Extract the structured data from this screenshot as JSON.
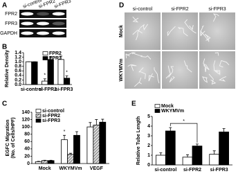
{
  "gel": {
    "panel": "A",
    "columns": [
      "si-control",
      "si-FPR2",
      "si-FPR3"
    ],
    "rows": [
      "FPR2",
      "FPR3",
      "GAPDH"
    ]
  },
  "micrographs": {
    "panel": "D",
    "columns": [
      "si-control",
      "si-FPR2",
      "si-FPR3"
    ],
    "rows": [
      "Mock",
      "WKYMVm"
    ]
  },
  "chart_data": [
    {
      "type": "bar",
      "panel": "B",
      "ylabel": "Relative Density",
      "categories": [
        "si-control",
        "si-FPR2",
        "si-FPR3"
      ],
      "series": [
        {
          "name": "FPR2",
          "color": "#ffffff",
          "values": [
            1.0,
            0.15,
            1.1
          ],
          "errors": [
            0,
            0.1,
            0.15
          ]
        },
        {
          "name": "FPR3",
          "color": "#000000",
          "values": [
            1.0,
            1.1,
            0.28
          ],
          "errors": [
            0,
            0.12,
            0.1
          ]
        }
      ],
      "ylim": [
        0,
        1.4
      ],
      "yticks": [
        {
          "value": 0,
          "label": "0.0"
        },
        {
          "value": 0.2,
          "label": "0.2"
        },
        {
          "value": 0.4,
          "label": "0.4"
        },
        {
          "value": 0.6,
          "label": "0.6"
        },
        {
          "value": 0.8,
          "label": "0.8"
        },
        {
          "value": 1.0,
          "label": "1.0"
        },
        {
          "value": 1.2,
          "label": "1.2"
        },
        {
          "value": 1.4,
          "label": "1.4"
        }
      ],
      "annotations": [
        "*",
        "*"
      ]
    },
    {
      "type": "bar",
      "panel": "C",
      "ylabel": [
        "EGFC Migration",
        "(No. of Cells/HPF)"
      ],
      "categories": [
        "Mock",
        "WKYMVm",
        "VEGF"
      ],
      "series": [
        {
          "name": "si-control",
          "color": "#ffffff",
          "values": [
            5,
            65,
            100
          ],
          "errors": [
            1,
            12,
            12
          ]
        },
        {
          "name": "si-FPR2",
          "color": "#888888",
          "pattern": "hatch",
          "values": [
            8,
            25,
            105
          ],
          "errors": [
            1,
            3,
            15
          ]
        },
        {
          "name": "si-FPR3",
          "color": "#000000",
          "values": [
            8,
            77,
            113
          ],
          "errors": [
            1,
            10,
            8
          ]
        }
      ],
      "ylim": [
        0,
        140
      ],
      "yticks": [
        0,
        20,
        40,
        60,
        80,
        100,
        120,
        140
      ],
      "annotations": [
        "*"
      ]
    },
    {
      "type": "bar",
      "panel": "E",
      "ylabel": "Relative Tube Length",
      "categories": [
        "si-control",
        "si-FPR2",
        "si-FPR3"
      ],
      "series": [
        {
          "name": "Mock",
          "color": "#ffffff",
          "values": [
            1.0,
            0.8,
            1.1
          ],
          "errors": [
            0.25,
            0.25,
            0.35
          ]
        },
        {
          "name": "WKYMVm",
          "color": "#000000",
          "values": [
            3.5,
            1.95,
            3.4
          ],
          "errors": [
            0.35,
            0.2,
            0.35
          ]
        }
      ],
      "ylim": [
        0,
        5
      ],
      "yticks": [
        0,
        1,
        2,
        3,
        4,
        5
      ],
      "annotations": [
        "*"
      ]
    }
  ]
}
